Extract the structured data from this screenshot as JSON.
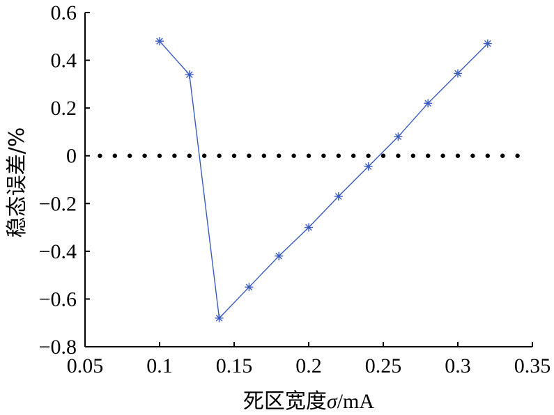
{
  "chart_data": {
    "type": "line",
    "title": "",
    "xlabel": "死区宽度σ/mA",
    "xlabel_parts": {
      "main": "死区宽度",
      "symbol": "σ",
      "unit": "/mA"
    },
    "ylabel": "稳态误差/%",
    "xlim": [
      0.05,
      0.35
    ],
    "ylim": [
      -0.8,
      0.6
    ],
    "x_ticks": [
      0.05,
      0.1,
      0.15,
      0.2,
      0.25,
      0.3,
      0.35
    ],
    "x_tick_labels": [
      "0.05",
      "0.1",
      "0.15",
      "0.2",
      "0.25",
      "0.3",
      "0.35"
    ],
    "y_ticks": [
      -0.8,
      -0.6,
      -0.4,
      -0.2,
      0,
      0.2,
      0.4,
      0.6
    ],
    "y_tick_labels": [
      "−0.8",
      "−0.6",
      "−0.4",
      "−0.2",
      "0",
      "0.2",
      "0.4",
      "0.6"
    ],
    "grid": false,
    "series": [
      {
        "x": [
          0.1,
          0.12,
          0.14,
          0.16,
          0.18,
          0.2,
          0.22,
          0.24,
          0.26,
          0.28,
          0.3,
          0.32
        ],
        "y": [
          0.48,
          0.34,
          -0.68,
          -0.55,
          -0.42,
          -0.3,
          -0.17,
          -0.045,
          0.08,
          0.22,
          0.345,
          0.47
        ],
        "color": "#3a5bbf",
        "marker": "asterisk",
        "line": "solid"
      }
    ],
    "reference_line": {
      "y": 0,
      "style": "dotted",
      "color": "#000000",
      "x": [
        0.06,
        0.07,
        0.08,
        0.09,
        0.1,
        0.11,
        0.12,
        0.13,
        0.14,
        0.15,
        0.16,
        0.17,
        0.18,
        0.19,
        0.2,
        0.21,
        0.22,
        0.23,
        0.24,
        0.25,
        0.26,
        0.27,
        0.28,
        0.29,
        0.3,
        0.31,
        0.32,
        0.33,
        0.34
      ]
    }
  }
}
